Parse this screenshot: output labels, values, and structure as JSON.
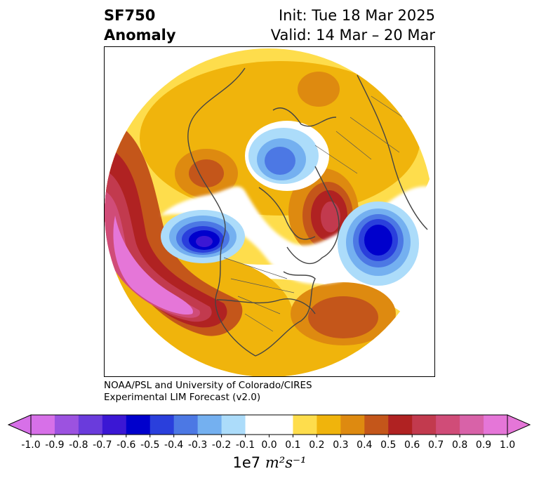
{
  "title": {
    "variable": "SF750",
    "subtitle": "Anomaly",
    "init": "Init: Tue 18 Mar 2025",
    "valid": "Valid: 14 Mar – 20 Mar"
  },
  "credit": {
    "line1": "NOAA/PSL and University of Colorado/CIRES",
    "line2": "Experimental LIM Forecast (v2.0)"
  },
  "colorbar": {
    "ticks": [
      "-1.0",
      "-0.9",
      "-0.8",
      "-0.7",
      "-0.6",
      "-0.5",
      "-0.4",
      "-0.3",
      "-0.2",
      "-0.1",
      "0.0",
      "0.1",
      "0.2",
      "0.3",
      "0.4",
      "0.5",
      "0.6",
      "0.7",
      "0.8",
      "0.9",
      "1.0"
    ],
    "colors": [
      "#d770e8",
      "#9c52e0",
      "#6a3bdc",
      "#3b17d4",
      "#0000cc",
      "#2a3fdc",
      "#4c78e4",
      "#74b0f0",
      "#acdcfa",
      "#ffffff",
      "#ffffff",
      "#fedd4c",
      "#f0b40c",
      "#de8a10",
      "#c4561a",
      "#b02222",
      "#c23a4e",
      "#d04c78",
      "#d862a8",
      "#e576d8"
    ],
    "units_base": "1e7",
    "units_expr": "m²s⁻¹"
  },
  "map": {
    "projection": "north-polar-stereographic",
    "field": "streamfunction anomaly 750 hPa"
  }
}
